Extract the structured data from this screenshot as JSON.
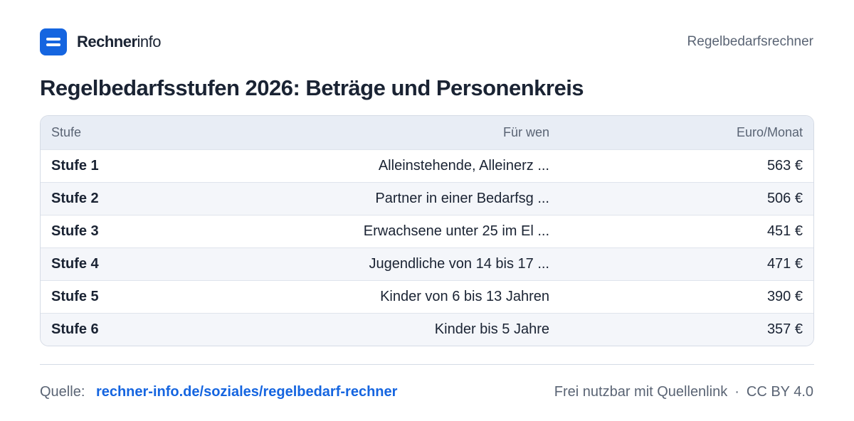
{
  "brand": {
    "name_bold": "Rechner",
    "name_light": "info"
  },
  "header": {
    "right_label": "Regelbedarfsrechner"
  },
  "page": {
    "title": "Regelbedarfsstufen 2026: Beträge und Personenkreis"
  },
  "table": {
    "columns": [
      "Stufe",
      "Für wen",
      "Euro/Monat"
    ],
    "rows": [
      {
        "stufe": "Stufe 1",
        "who": "Alleinstehende, Alleinerz ...",
        "eur": "563 €"
      },
      {
        "stufe": "Stufe 2",
        "who": "Partner in einer Bedarfsg ...",
        "eur": "506 €"
      },
      {
        "stufe": "Stufe 3",
        "who": "Erwachsene unter 25 im El ...",
        "eur": "451 €"
      },
      {
        "stufe": "Stufe 4",
        "who": "Jugendliche von 14 bis 17 ...",
        "eur": "471 €"
      },
      {
        "stufe": "Stufe 5",
        "who": "Kinder von 6 bis 13 Jahren",
        "eur": "390 €"
      },
      {
        "stufe": "Stufe 6",
        "who": "Kinder bis 5 Jahre",
        "eur": "357 €"
      }
    ]
  },
  "footer": {
    "source_label": "Quelle:",
    "source_link": "rechner-info.de/soziales/regelbedarf-rechner",
    "license_text": "Frei nutzbar mit Quellenlink",
    "separator": "·",
    "license": "CC BY 4.0"
  }
}
